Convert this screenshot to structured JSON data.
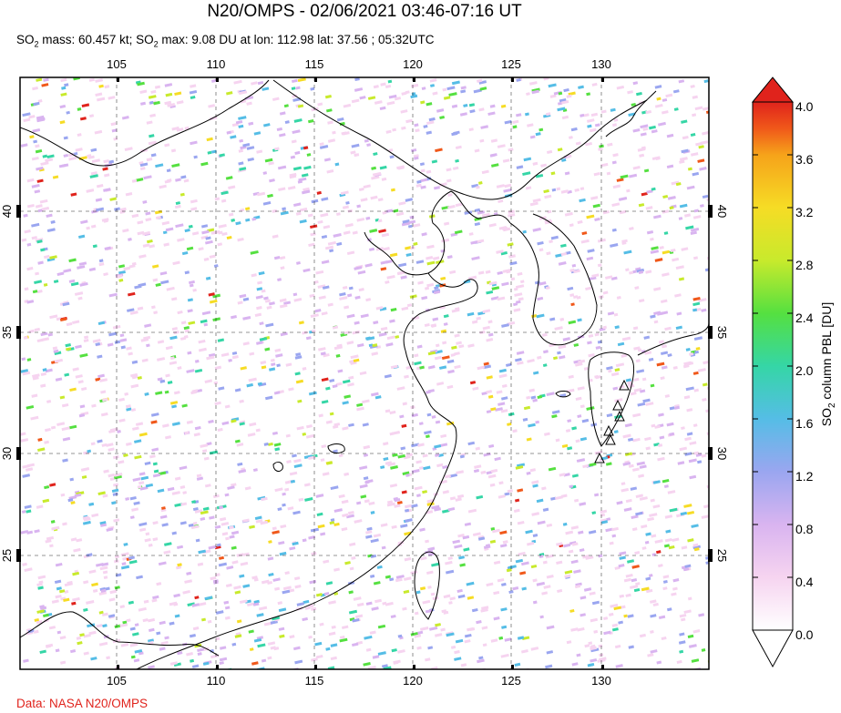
{
  "title": "N20/OMPS - 02/06/2021 03:46-07:16 UT",
  "subtitle": {
    "mass_prefix": "SO",
    "mass_sub": "2",
    "mass_text": " mass: 60.457 kt; SO",
    "max_sub": "2",
    "max_text": " max: 9.08 DU at lon: 112.98 lat: 37.56 ; 05:32UTC"
  },
  "credit": "Data: NASA N20/OMPS",
  "map": {
    "lon_ticks": [
      "105",
      "110",
      "115",
      "120",
      "125",
      "130"
    ],
    "lat_ticks": [
      "40",
      "35",
      "30",
      "25"
    ]
  },
  "colorbar": {
    "label_prefix": "SO",
    "label_sub": "2",
    "label_suffix": " column PBL [DU]",
    "ticks": [
      "4.0",
      "3.6",
      "3.2",
      "2.8",
      "2.4",
      "2.0",
      "1.6",
      "1.2",
      "0.8",
      "0.4",
      "0.0"
    ],
    "colors": [
      "#ffffff",
      "#f6d4f0",
      "#d9b4f0",
      "#9aa6f0",
      "#55bde6",
      "#35d6a6",
      "#55e040",
      "#c8ea2c",
      "#f6dc25",
      "#f6a31a",
      "#f0581a",
      "#e0231c"
    ]
  },
  "legend_icons": [
    "volcano-icon"
  ]
}
